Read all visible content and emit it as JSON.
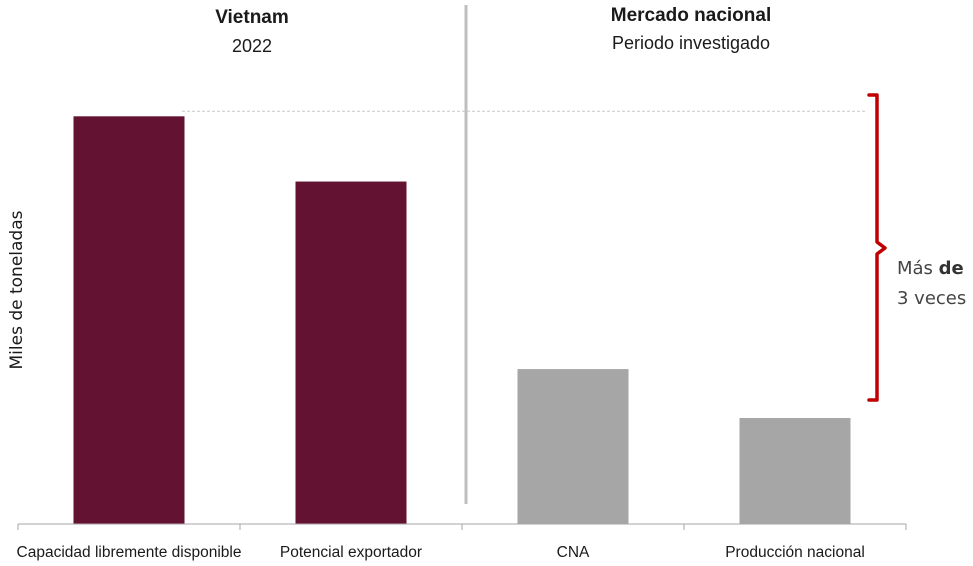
{
  "chart_data": {
    "type": "bar",
    "categories": [
      "Capacidad libremente disponible",
      "Potencial exportador",
      "CNA",
      "Producción nacional"
    ],
    "values": [
      100,
      84,
      38,
      26
    ],
    "bar_colors": [
      "#631232",
      "#631232",
      "#a6a6a6",
      "#a6a6a6"
    ],
    "ylabel": "Miles de toneladas",
    "ylim": [
      0,
      104
    ],
    "groups": [
      {
        "title": "Vietnam",
        "subtitle": "2022"
      },
      {
        "title": "Mercado nacional",
        "subtitle": "Periodo investigado"
      }
    ],
    "annotation": {
      "text_regular": "Más ",
      "text_bold": "de",
      "text_line2": "3 veces",
      "bracket_color": "#c00000"
    }
  }
}
